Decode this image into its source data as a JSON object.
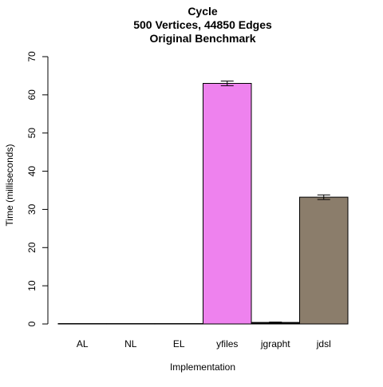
{
  "chart_data": {
    "type": "bar",
    "title": [
      "Cycle",
      "500 Vertices, 44850 Edges",
      "Original Benchmark"
    ],
    "xlabel": "Implementation",
    "ylabel": "Time (milliseconds)",
    "categories": [
      "AL",
      "NL",
      "EL",
      "yfiles",
      "jgrapht",
      "jdsl"
    ],
    "values": [
      0.1,
      0.1,
      0.1,
      63.0,
      0.4,
      33.2
    ],
    "error_low": [
      0.1,
      0.1,
      0.1,
      62.4,
      0.3,
      32.6
    ],
    "error_high": [
      0.1,
      0.1,
      0.1,
      63.6,
      0.5,
      33.8
    ],
    "colors": [
      "#000000",
      "#000000",
      "#000000",
      "#ee82ee",
      "#000000",
      "#8b7d6b"
    ],
    "ylim": [
      0,
      70
    ],
    "yticks": [
      0,
      10,
      20,
      30,
      40,
      50,
      60,
      70
    ],
    "grid": false,
    "legend": "none"
  }
}
